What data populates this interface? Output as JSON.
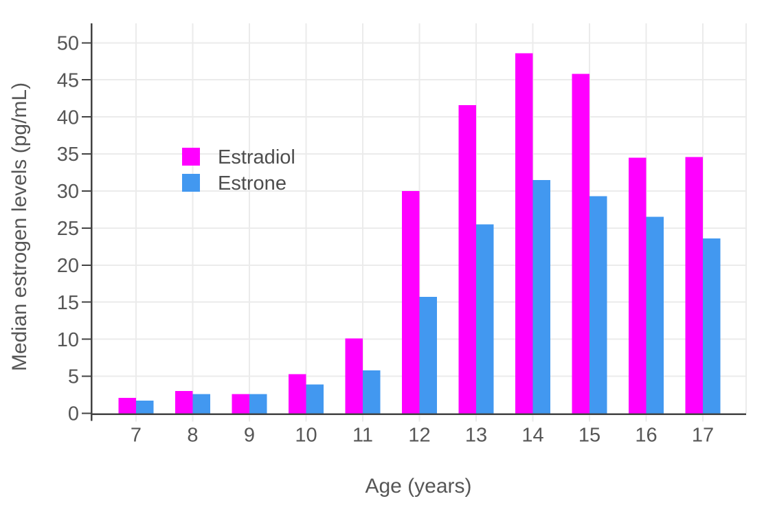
{
  "chart_data": {
    "type": "bar",
    "title": "",
    "xlabel": "Age (years)",
    "ylabel": "Median estrogen levels (pg/mL)",
    "categories": [
      "7",
      "8",
      "9",
      "10",
      "11",
      "12",
      "13",
      "14",
      "15",
      "16",
      "17"
    ],
    "series": [
      {
        "name": "Estradiol",
        "color": "#FF00FF",
        "values": [
          2.1,
          3.0,
          2.6,
          5.3,
          10.1,
          30.0,
          41.6,
          48.6,
          45.8,
          34.5,
          34.6
        ]
      },
      {
        "name": "Estrone",
        "color": "#4298F0",
        "values": [
          1.7,
          2.6,
          2.6,
          3.9,
          5.8,
          15.7,
          25.5,
          31.5,
          29.3,
          26.5,
          23.6
        ]
      }
    ],
    "ylim": [
      0,
      52.6
    ],
    "yticks": [
      0,
      5,
      10,
      15,
      20,
      25,
      30,
      35,
      40,
      45,
      50
    ],
    "grid": true,
    "legend_position": "inside-top-left",
    "colors": {
      "axis": "#424242",
      "grid": "#EBEBEB",
      "tick_text": "#565656",
      "background": "#FFFFFF"
    }
  }
}
